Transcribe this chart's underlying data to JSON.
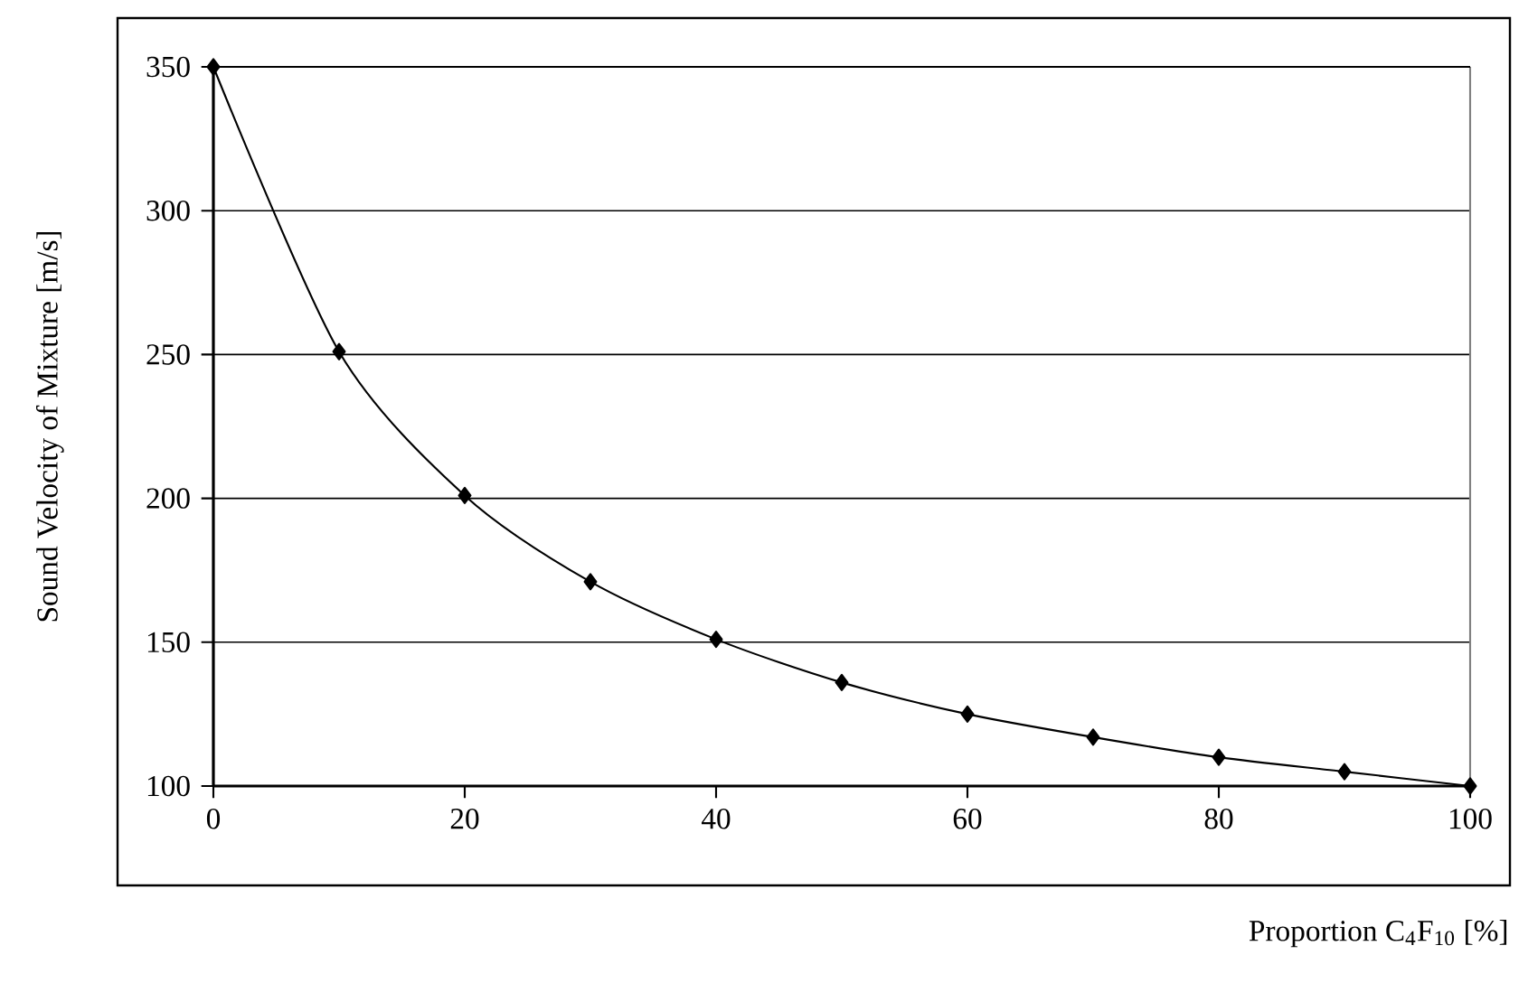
{
  "chart_data": {
    "type": "line",
    "xlabel": "Proportion C$_{4}$F$_{10}$ [%]",
    "ylabel": "Sound Velocity of Mixture [m/s]",
    "x": [
      0,
      10,
      20,
      30,
      40,
      50,
      60,
      70,
      80,
      90,
      100
    ],
    "values": [
      350,
      251,
      201,
      171,
      151,
      136,
      125,
      117,
      110,
      105,
      100
    ],
    "color": "#000000",
    "marker": "diamond",
    "line_style": "solid",
    "grid": "y",
    "xlim": [
      0,
      100
    ],
    "ylim": [
      100,
      350
    ],
    "xticks": [
      0,
      20,
      40,
      60,
      80,
      100
    ],
    "yticks": [
      100,
      150,
      200,
      250,
      300,
      350
    ]
  }
}
